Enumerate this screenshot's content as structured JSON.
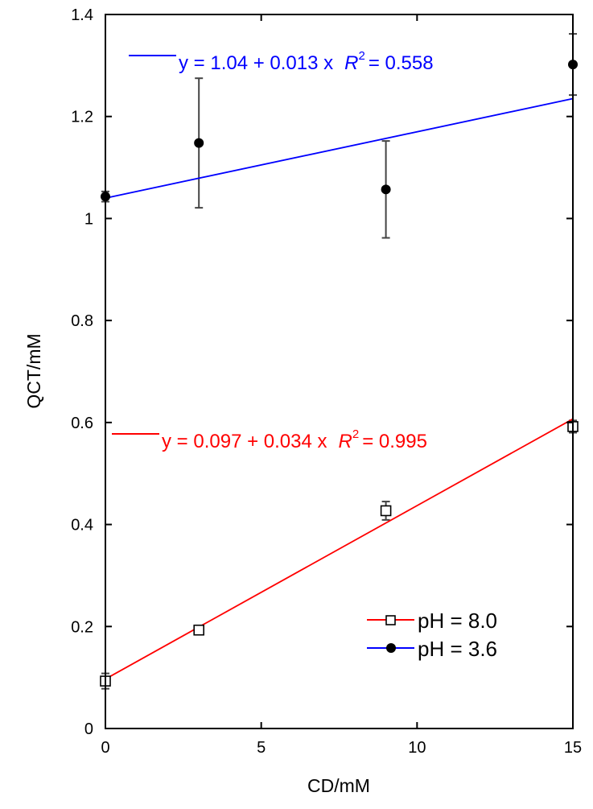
{
  "chart_data": {
    "type": "scatter",
    "xlabel": "CD/mM",
    "ylabel": "QCT/mM",
    "xlim": [
      0,
      15
    ],
    "ylim": [
      0,
      1.4
    ],
    "xticks": [
      0,
      5,
      10,
      15
    ],
    "yticks": [
      0,
      0.2,
      0.4,
      0.6,
      0.8,
      1,
      1.2,
      1.4
    ],
    "xtick_labels": [
      "0",
      "5",
      "10",
      "15"
    ],
    "ytick_labels": [
      "0",
      "0.2",
      "0.4",
      "0.6",
      "0.8",
      "1",
      "1.2",
      "1.4"
    ],
    "grid": false,
    "legend_position": "bottom-right",
    "series": [
      {
        "name": "pH = 8.0",
        "marker": "open-square",
        "color": "#000000",
        "fit_color": "#ff0000",
        "x": [
          0,
          3,
          9,
          15
        ],
        "y": [
          0.093,
          0.193,
          0.427,
          0.592
        ],
        "err": [
          0.015,
          0.008,
          0.018,
          0.012
        ],
        "fit": {
          "intercept": 0.097,
          "slope": 0.034
        },
        "equation": {
          "lhs": "y = 0.097 + 0.034 x",
          "r_symbol": "R",
          "r_exp": "2",
          "r_value": "= 0.995"
        }
      },
      {
        "name": "pH = 3.6",
        "marker": "filled-circle",
        "color": "#000000",
        "fit_color": "#0000ff",
        "x": [
          0,
          3,
          9,
          15
        ],
        "y": [
          1.043,
          1.148,
          1.057,
          1.302
        ],
        "err": [
          0.01,
          0.127,
          0.095,
          0.06
        ],
        "fit": {
          "intercept": 1.04,
          "slope": 0.013
        },
        "equation": {
          "lhs": "y = 1.04 + 0.013 x",
          "r_symbol": "R",
          "r_exp": "2",
          "r_value": "= 0.558"
        }
      }
    ]
  }
}
